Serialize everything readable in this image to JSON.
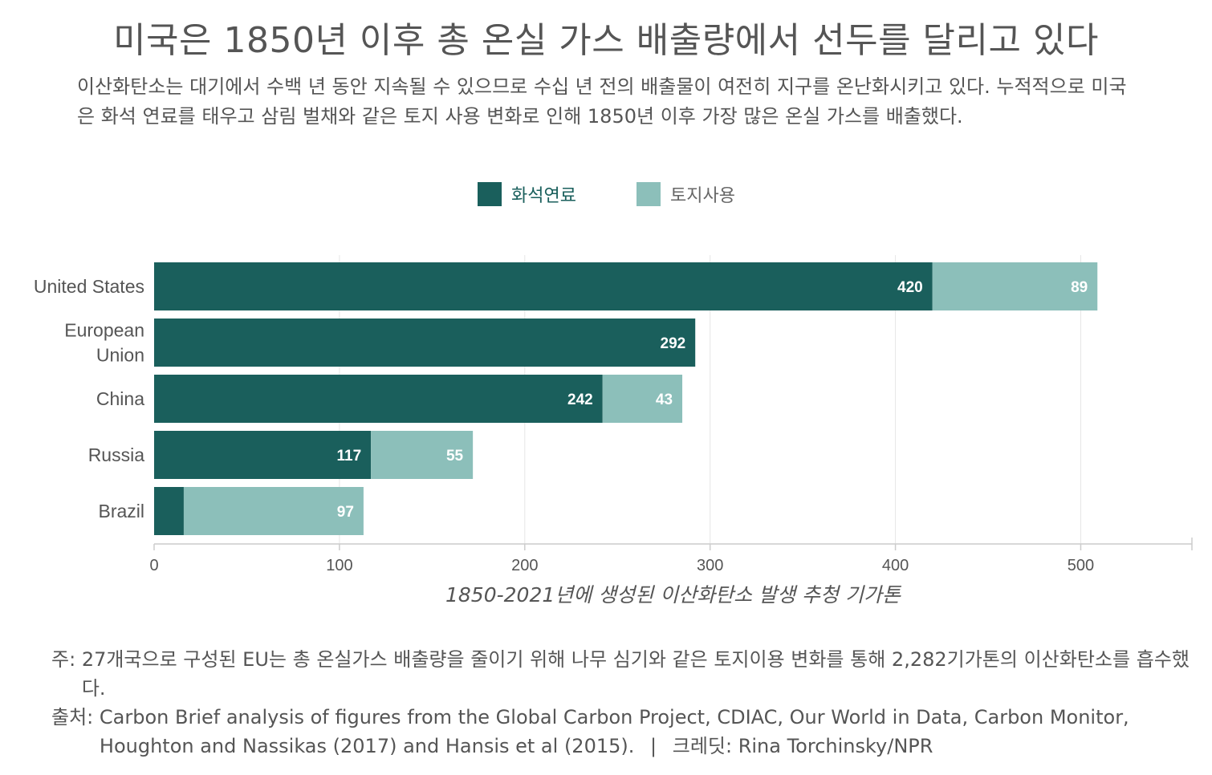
{
  "title": "미국은 1850년 이후 총 온실 가스 배출량에서 선두를 달리고 있다",
  "subtitle": "이산화탄소는 대기에서 수백 년 동안 지속될 수 있으므로 수십 년 전의 배출물이 여전히 지구를 온난화시키고 있다. 누적적으로 미국은 화석 연료를 태우고 삼림 벌채와 같은 토지 사용 변화로 인해 1850년 이후 가장 많은 온실 가스를 배출했다.",
  "legend": {
    "series1": "화석연료",
    "series2": "토지사용"
  },
  "colors": {
    "fossil": "#1a5f5c",
    "land": "#8cbfba",
    "grid": "#e6e6e6",
    "axis": "#cccccc"
  },
  "chart_data": {
    "type": "bar",
    "orientation": "horizontal",
    "stacked": true,
    "categories": [
      "United States",
      "European Union",
      "China",
      "Russia",
      "Brazil"
    ],
    "category_lines": [
      [
        "United States"
      ],
      [
        "European",
        "Union"
      ],
      [
        "China"
      ],
      [
        "Russia"
      ],
      [
        "Brazil"
      ]
    ],
    "series": [
      {
        "name": "화석연료",
        "values": [
          420,
          292,
          242,
          117,
          16
        ],
        "labels": [
          "420",
          "292",
          "242",
          "117",
          ""
        ]
      },
      {
        "name": "토지사용",
        "values": [
          89,
          0,
          43,
          55,
          97
        ],
        "labels": [
          "89",
          "",
          "43",
          "55",
          "97"
        ]
      }
    ],
    "xlim": [
      0,
      560
    ],
    "xticks": [
      0,
      100,
      200,
      300,
      400,
      500
    ],
    "xlabel": "1850-2021년에 생성된 이산화탄소 발생 추청 기가톤",
    "grid": true
  },
  "footer": {
    "note_prefix": "주:",
    "note_text": "27개국으로 구성된 EU는 총 온실가스 배출량을 줄이기 위해 나무 심기와 같은 토지이용 변화를 통해 2,282기가톤의 이산화탄소를 흡수했다.",
    "source_prefix": "출처:",
    "source_text": "Carbon Brief analysis of figures from the Global Carbon Project, CDIAC, Our World in Data, Carbon Monitor, Houghton and Nassikas (2017) and Hansis et al (2015).",
    "divider": "|",
    "credit": "크레딧: Rina Torchinsky/NPR"
  }
}
